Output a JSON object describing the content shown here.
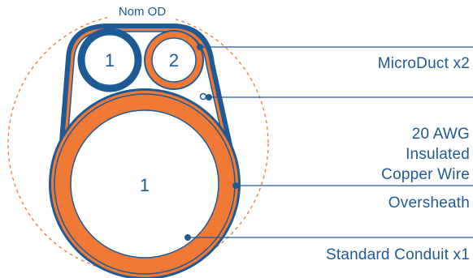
{
  "diagram": {
    "nom_od_label": "Nom OD",
    "microduct_1_label": "1",
    "microduct_2_label": "2",
    "conduit_label": "1",
    "callouts": {
      "microduct": "MicroDuct x2",
      "wire_line1": "20 AWG",
      "wire_line2": "Insulated",
      "wire_line3": "Copper Wire",
      "oversheath": "Oversheath",
      "conduit": "Standard Conduit x1"
    }
  },
  "colors": {
    "orange": "#f07a35",
    "blue": "#1e5a96",
    "text": "#1e5a96"
  }
}
